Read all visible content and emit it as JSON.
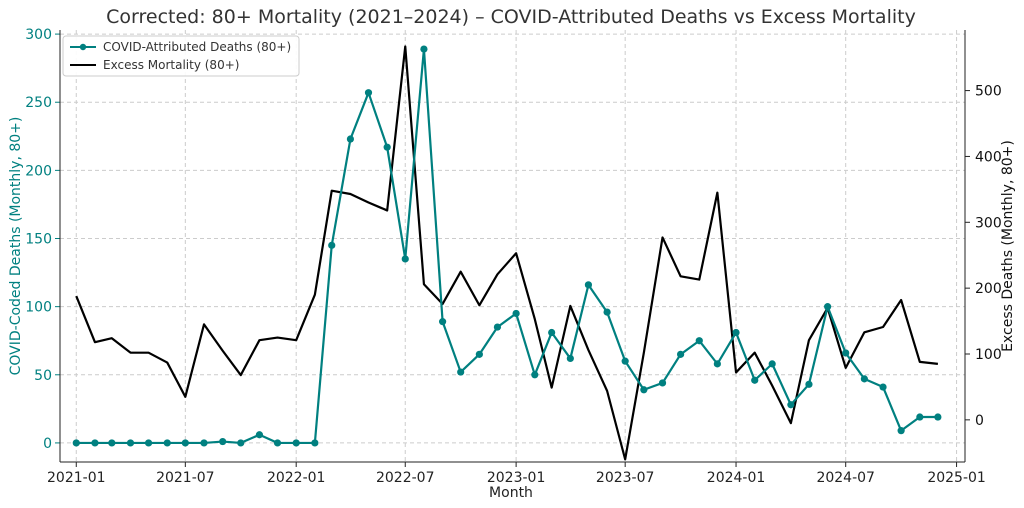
{
  "chart_data": {
    "type": "line",
    "title": "Corrected: 80+ Mortality (2021–2024) – COVID-Attributed Deaths vs Excess Mortality",
    "xlabel": "Month",
    "ylabel_left": "COVID-Coded Deaths (Monthly, 80+)",
    "ylabel_right": "Excess Deaths (Monthly, 80+)",
    "ylim_left": [
      -14,
      303
    ],
    "ylim_right": [
      -64,
      592
    ],
    "xlim": [
      "2020-12-05",
      "2025-01-15"
    ],
    "xticks": [
      "2021-01",
      "2021-07",
      "2022-01",
      "2022-07",
      "2023-01",
      "2023-07",
      "2024-01",
      "2024-07",
      "2025-01"
    ],
    "yticks_left": [
      0,
      50,
      100,
      150,
      200,
      250,
      300
    ],
    "yticks_right": [
      0,
      100,
      200,
      300,
      400,
      500
    ],
    "grid": true,
    "legend": "top-left",
    "x": [
      "2021-01",
      "2021-02",
      "2021-03",
      "2021-04",
      "2021-05",
      "2021-06",
      "2021-07",
      "2021-08",
      "2021-09",
      "2021-10",
      "2021-11",
      "2021-12",
      "2022-01",
      "2022-02",
      "2022-03",
      "2022-04",
      "2022-05",
      "2022-06",
      "2022-07",
      "2022-08",
      "2022-09",
      "2022-10",
      "2022-11",
      "2022-12",
      "2023-01",
      "2023-02",
      "2023-03",
      "2023-04",
      "2023-05",
      "2023-06",
      "2023-07",
      "2023-08",
      "2023-09",
      "2023-10",
      "2023-11",
      "2023-12",
      "2024-01",
      "2024-02",
      "2024-03",
      "2024-04",
      "2024-05",
      "2024-06",
      "2024-07",
      "2024-08",
      "2024-09",
      "2024-10",
      "2024-11",
      "2024-12"
    ],
    "series": [
      {
        "name": "COVID-Attributed Deaths (80+)",
        "axis": "left",
        "color": "#008080",
        "marker": "circle",
        "values": [
          0,
          0,
          0,
          0,
          0,
          0,
          0,
          0,
          1,
          0,
          6,
          0,
          0,
          0,
          145,
          223,
          257,
          217,
          135,
          289,
          89,
          52,
          65,
          85,
          95,
          50,
          81,
          62,
          116,
          96,
          60,
          39,
          44,
          65,
          75,
          58,
          81,
          46,
          58,
          28,
          43,
          100,
          66,
          47,
          41,
          9,
          19,
          19
        ]
      },
      {
        "name": "Excess Mortality (80+)",
        "axis": "right",
        "color": "#000000",
        "marker": "none",
        "values": [
          188,
          118,
          124,
          102,
          102,
          87,
          35,
          145,
          105,
          68,
          121,
          125,
          121,
          190,
          348,
          343,
          330,
          318,
          567,
          206,
          176,
          225,
          174,
          221,
          253,
          153,
          49,
          173,
          106,
          44,
          -60,
          102,
          277,
          218,
          213,
          345,
          72,
          102,
          52,
          -5,
          121,
          170,
          79,
          133,
          141,
          182,
          88,
          85
        ]
      }
    ]
  }
}
